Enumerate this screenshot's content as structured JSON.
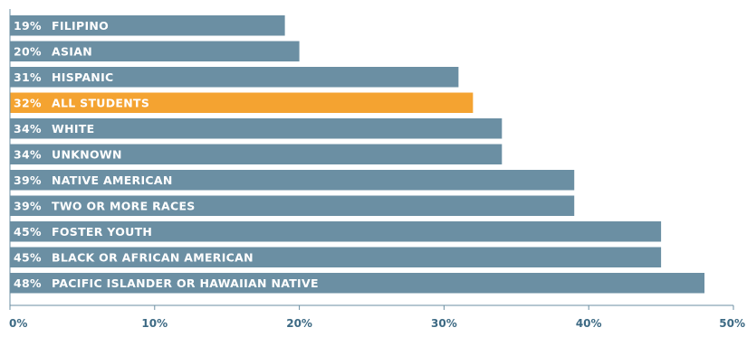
{
  "chart_data": {
    "type": "bar",
    "orientation": "horizontal",
    "categories": [
      "FILIPINO",
      "ASIAN",
      "HISPANIC",
      "ALL STUDENTS",
      "WHITE",
      "UNKNOWN",
      "NATIVE AMERICAN",
      "TWO OR MORE RACES",
      "FOSTER YOUTH",
      "BLACK OR AFRICAN AMERICAN",
      "PACIFIC ISLANDER OR HAWAIIAN NATIVE"
    ],
    "values": [
      19,
      20,
      31,
      32,
      34,
      34,
      39,
      39,
      45,
      45,
      48
    ],
    "value_labels": [
      "19%",
      "20%",
      "31%",
      "32%",
      "34%",
      "34%",
      "39%",
      "39%",
      "45%",
      "45%",
      "48%"
    ],
    "highlight_index": 3,
    "xlim": [
      0,
      50
    ],
    "x_ticks": [
      0,
      10,
      20,
      30,
      40,
      50
    ],
    "x_tick_labels": [
      "0%",
      "10%",
      "20%",
      "30%",
      "40%",
      "50%"
    ],
    "grid": false,
    "colors": {
      "bar": "#6b8fa3",
      "highlight": "#f4a331",
      "axis": "#6b8fa3",
      "tick_text": "#3d6a84",
      "label_text": "#ffffff"
    }
  }
}
